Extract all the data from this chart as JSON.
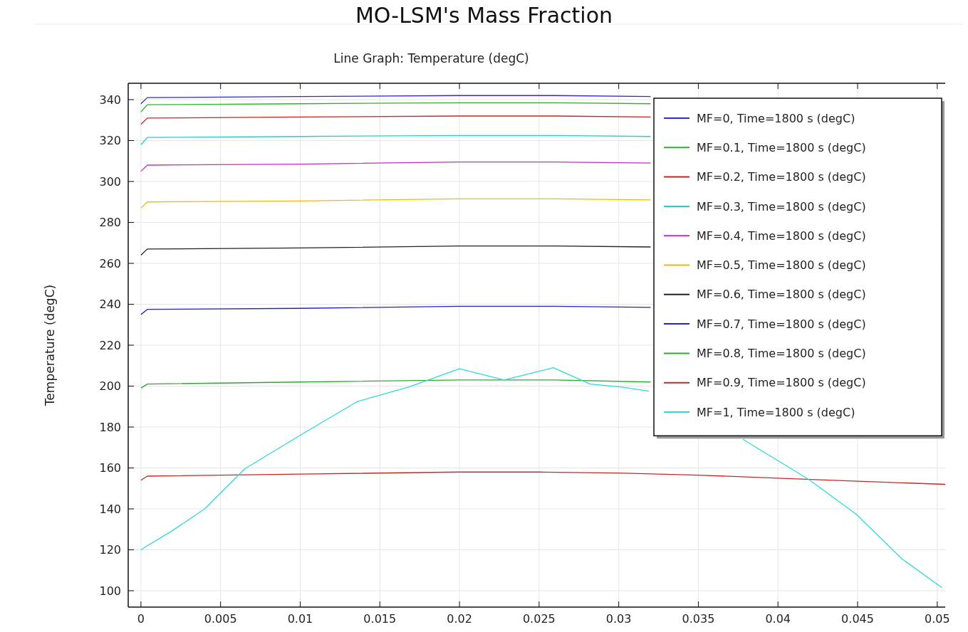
{
  "chart_data": {
    "type": "line",
    "title": "MO-LSM's Mass Fraction",
    "subtitle": "Line Graph: Temperature (degC)",
    "ylabel": "Temperature (degC)",
    "xlim": [
      -0.0008,
      0.0505
    ],
    "xticks": [
      0,
      0.005,
      0.01,
      0.015,
      0.02,
      0.025,
      0.03,
      0.035,
      0.04,
      0.045,
      0.05
    ],
    "ylim": [
      92,
      348
    ],
    "yticks": [
      100,
      120,
      140,
      160,
      180,
      200,
      220,
      240,
      260,
      280,
      300,
      320,
      340
    ],
    "grid": true,
    "legend": "top right",
    "line_style": "solid",
    "marker": "none",
    "series": [
      {
        "name": "MF=0, Time=1800 s (degC)",
        "color": "#2b2bd9",
        "x": [
          0,
          0.0004,
          0.01,
          0.02,
          0.026,
          0.032
        ],
        "values": [
          338,
          341,
          341.5,
          342,
          342,
          341.5
        ]
      },
      {
        "name": "MF=0.1, Time=1800 s (degC)",
        "color": "#33b033",
        "x": [
          0,
          0.0004,
          0.01,
          0.02,
          0.026,
          0.032
        ],
        "values": [
          334,
          337.5,
          338,
          338.5,
          338.5,
          338
        ]
      },
      {
        "name": "MF=0.2, Time=1800 s (degC)",
        "color": "#d42020",
        "x": [
          0,
          0.0004,
          0.01,
          0.02,
          0.026,
          0.032
        ],
        "values": [
          328,
          331,
          331.5,
          332,
          332,
          331.5
        ]
      },
      {
        "name": "MF=0.3, Time=1800 s (degC)",
        "color": "#20d0d0",
        "x": [
          0,
          0.0004,
          0.01,
          0.02,
          0.026,
          0.032
        ],
        "values": [
          318,
          321.5,
          322,
          322.5,
          322.5,
          322
        ]
      },
      {
        "name": "MF=0.4, Time=1800 s (degC)",
        "color": "#c030c0",
        "x": [
          0,
          0.0004,
          0.01,
          0.02,
          0.026,
          0.032
        ],
        "values": [
          305,
          308,
          308.5,
          309.5,
          309.5,
          309
        ]
      },
      {
        "name": "MF=0.5, Time=1800 s (degC)",
        "color": "#f5b800",
        "x": [
          0,
          0.0004,
          0.01,
          0.02,
          0.026,
          0.032
        ],
        "values": [
          287,
          290,
          290.5,
          291.5,
          291.5,
          291
        ]
      },
      {
        "name": "MF=0.6, Time=1800 s (degC)",
        "color": "#222222",
        "x": [
          0,
          0.0004,
          0.01,
          0.02,
          0.026,
          0.032
        ],
        "values": [
          264,
          267,
          267.5,
          268.5,
          268.5,
          268
        ]
      },
      {
        "name": "MF=0.7, Time=1800 s (degC)",
        "color": "#2222c8",
        "x": [
          0,
          0.0004,
          0.01,
          0.02,
          0.026,
          0.032
        ],
        "values": [
          235,
          237.5,
          238,
          239,
          239,
          238.5
        ]
      },
      {
        "name": "MF=0.8, Time=1800 s (degC)",
        "color": "#30a830",
        "x": [
          0,
          0.0004,
          0.01,
          0.02,
          0.026,
          0.032
        ],
        "values": [
          199,
          201,
          202,
          203,
          203,
          202
        ]
      },
      {
        "name": "MF=0.9, Time=1800 s (degC)",
        "color": "#c82828",
        "x": [
          0,
          0.0004,
          0.01,
          0.02,
          0.025,
          0.03,
          0.035,
          0.04,
          0.045,
          0.0505
        ],
        "values": [
          154,
          156,
          157,
          158,
          158,
          157.5,
          156.5,
          155,
          153.5,
          152
        ]
      },
      {
        "name": "MF=1, Time=1800 s (degC)",
        "color": "#30d8d8",
        "x": [
          0,
          0.0004,
          0.0019,
          0.004,
          0.0065,
          0.01,
          0.0136,
          0.0168,
          0.02,
          0.0228,
          0.0259,
          0.0282,
          0.0302,
          0.0319,
          0.0325,
          0.0378,
          0.0419,
          0.0449,
          0.0478,
          0.0503
        ],
        "values": [
          120,
          122,
          129,
          140,
          159.5,
          176,
          192.5,
          199.5,
          208.5,
          203,
          209,
          201,
          199.5,
          197.5,
          null,
          174,
          154.5,
          137.5,
          115.5,
          101.5
        ]
      }
    ]
  }
}
